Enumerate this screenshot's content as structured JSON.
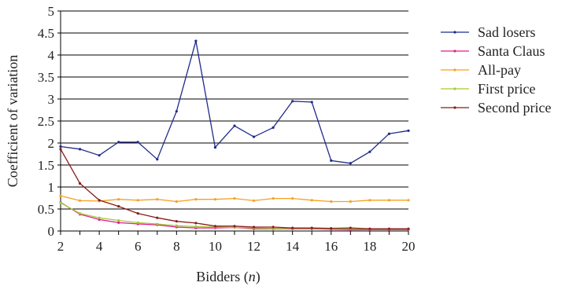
{
  "chart_data": {
    "type": "line",
    "title": "",
    "xlabel_prefix": "Bidders (",
    "xlabel_var": "n",
    "xlabel_suffix": ")",
    "ylabel": "Coefficient of variation",
    "xlim": [
      2,
      20
    ],
    "ylim": [
      0,
      5
    ],
    "xticks": [
      2,
      4,
      6,
      8,
      10,
      12,
      14,
      16,
      18,
      20
    ],
    "yticks": [
      0,
      0.5,
      1,
      1.5,
      2,
      2.5,
      3,
      3.5,
      4,
      4.5,
      5
    ],
    "ytick_labels": [
      "0",
      "0.5",
      "1",
      "1.5",
      "2",
      "2.5",
      "3",
      "3.5",
      "4",
      "4.5",
      "5"
    ],
    "grid": "horizontal",
    "legend_position": "right",
    "x": [
      2,
      3,
      4,
      5,
      6,
      7,
      8,
      9,
      10,
      11,
      12,
      13,
      14,
      15,
      16,
      17,
      18,
      19,
      20
    ],
    "series": [
      {
        "name": "Sad losers",
        "color": "#1f2a8a",
        "values": [
          1.92,
          1.86,
          1.72,
          2.02,
          2.02,
          1.63,
          2.72,
          4.32,
          1.9,
          2.39,
          2.14,
          2.35,
          2.95,
          2.93,
          1.6,
          1.54,
          1.8,
          2.21,
          2.28
        ]
      },
      {
        "name": "Santa Claus",
        "color": "#e0218a",
        "values": [
          0.65,
          0.38,
          0.26,
          0.19,
          0.16,
          0.14,
          0.09,
          0.07,
          0.07,
          0.08,
          0.05,
          0.05,
          0.05,
          0.05,
          0.04,
          0.03,
          0.03,
          0.03,
          0.03
        ]
      },
      {
        "name": "All-pay",
        "color": "#f5a020",
        "values": [
          0.8,
          0.69,
          0.68,
          0.72,
          0.7,
          0.72,
          0.67,
          0.72,
          0.72,
          0.74,
          0.69,
          0.74,
          0.74,
          0.7,
          0.67,
          0.67,
          0.7,
          0.7,
          0.7
        ]
      },
      {
        "name": "First price",
        "color": "#a5c93a",
        "values": [
          0.64,
          0.4,
          0.3,
          0.24,
          0.19,
          0.16,
          0.12,
          0.1,
          0.09,
          0.08,
          0.07,
          0.06,
          0.06,
          0.06,
          0.05,
          0.05,
          0.04,
          0.04,
          0.04
        ]
      },
      {
        "name": "Second price",
        "color": "#8b1a1a",
        "values": [
          1.86,
          1.08,
          0.7,
          0.56,
          0.4,
          0.3,
          0.22,
          0.18,
          0.11,
          0.11,
          0.09,
          0.09,
          0.07,
          0.07,
          0.06,
          0.07,
          0.05,
          0.05,
          0.05
        ]
      }
    ]
  }
}
